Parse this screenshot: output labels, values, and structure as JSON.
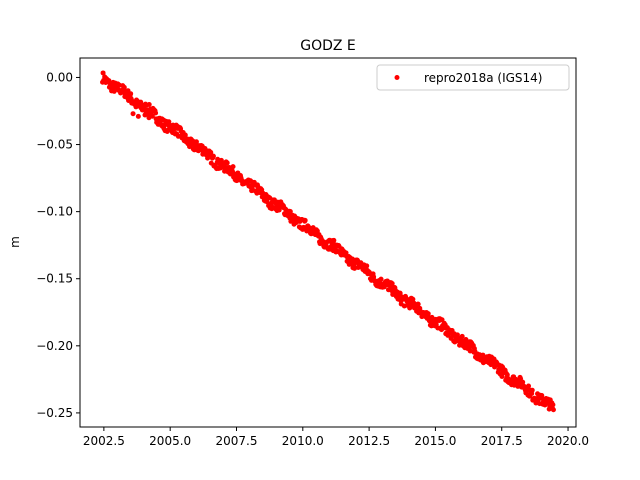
{
  "chart_data": {
    "type": "scatter",
    "title": "GODZ E",
    "xlabel": "",
    "ylabel": "m",
    "xlim": [
      2001.6,
      2020.3
    ],
    "ylim": [
      -0.2605,
      0.0145
    ],
    "xticks": [
      2002.5,
      2005.0,
      2007.5,
      2010.0,
      2012.5,
      2015.0,
      2017.5,
      2020.0
    ],
    "xtick_labels": [
      "2002.5",
      "2005.0",
      "2007.5",
      "2010.0",
      "2012.5",
      "2015.0",
      "2017.5",
      "2020.0"
    ],
    "yticks": [
      0.0,
      -0.05,
      -0.1,
      -0.15,
      -0.2,
      -0.25
    ],
    "ytick_labels": [
      "0.00",
      "−0.05",
      "−0.10",
      "−0.15",
      "−0.20",
      "−0.25"
    ],
    "grid": false,
    "legend_position": "top-right",
    "series": [
      {
        "name": "repro2018a (IGS14)",
        "color": "#ff0000",
        "marker": "point",
        "x_range": [
          2002.45,
          2019.45
        ],
        "trend": {
          "start": [
            2002.45,
            0.0
          ],
          "end": [
            2019.45,
            -0.247
          ]
        },
        "scatter_amplitude": 0.004,
        "outliers": [
          [
            2003.8,
            -0.029
          ],
          [
            2004.05,
            -0.028
          ],
          [
            2003.6,
            -0.027
          ],
          [
            2004.2,
            -0.03
          ]
        ]
      }
    ]
  }
}
